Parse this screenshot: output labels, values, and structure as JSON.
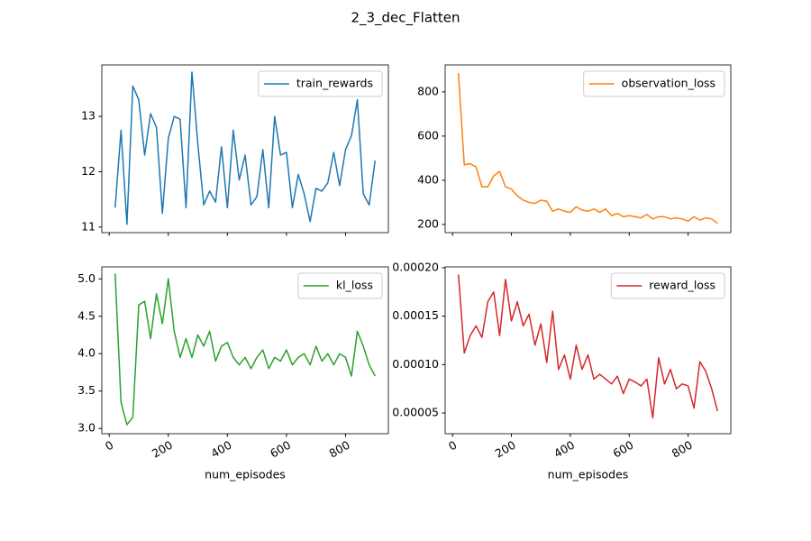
{
  "title": "2_3_dec_Flatten",
  "chart_data": [
    {
      "type": "line",
      "x": [
        20,
        40,
        60,
        80,
        100,
        120,
        140,
        160,
        180,
        200,
        220,
        240,
        260,
        280,
        300,
        320,
        340,
        360,
        380,
        400,
        420,
        440,
        460,
        480,
        500,
        520,
        540,
        560,
        580,
        600,
        620,
        640,
        660,
        680,
        700,
        720,
        740,
        760,
        780,
        800,
        820,
        840,
        860,
        880,
        900
      ],
      "series": [
        {
          "name": "train_rewards",
          "color": "#1f77b4",
          "values": [
            11.35,
            12.75,
            11.05,
            13.55,
            13.3,
            12.3,
            13.05,
            12.8,
            11.25,
            12.6,
            13.0,
            12.95,
            11.35,
            13.8,
            12.5,
            11.4,
            11.65,
            11.45,
            12.45,
            11.35,
            12.75,
            11.85,
            12.3,
            11.4,
            11.55,
            12.4,
            11.35,
            13.0,
            12.3,
            12.35,
            11.35,
            11.95,
            11.6,
            11.1,
            11.7,
            11.65,
            11.8,
            12.35,
            11.75,
            12.4,
            12.65,
            13.3,
            11.6,
            11.4,
            12.2
          ]
        }
      ],
      "xlim": [
        -25,
        945
      ],
      "xticks": [
        0,
        200,
        400,
        600,
        800
      ],
      "ylim": [
        10.9,
        13.93
      ],
      "yticks": [
        11,
        12,
        13
      ],
      "legend": "upper right"
    },
    {
      "type": "line",
      "x": [
        20,
        40,
        60,
        80,
        100,
        120,
        140,
        160,
        180,
        200,
        220,
        240,
        260,
        280,
        300,
        320,
        340,
        360,
        380,
        400,
        420,
        440,
        460,
        480,
        500,
        520,
        540,
        560,
        580,
        600,
        620,
        640,
        660,
        680,
        700,
        720,
        740,
        760,
        780,
        800,
        820,
        840,
        860,
        880,
        900
      ],
      "series": [
        {
          "name": "observation_loss",
          "color": "#ff7f0e",
          "values": [
            885,
            470,
            475,
            460,
            370,
            370,
            420,
            440,
            370,
            360,
            330,
            310,
            300,
            295,
            310,
            305,
            260,
            270,
            260,
            255,
            280,
            265,
            260,
            270,
            255,
            270,
            240,
            250,
            235,
            240,
            235,
            230,
            245,
            225,
            235,
            235,
            225,
            230,
            225,
            215,
            235,
            220,
            230,
            225,
            205
          ]
        }
      ],
      "xlim": [
        -25,
        945
      ],
      "xticks": [
        0,
        200,
        400,
        600,
        800
      ],
      "ylim": [
        163,
        922
      ],
      "yticks": [
        200,
        400,
        600,
        800
      ],
      "legend": "upper right"
    },
    {
      "type": "line",
      "x": [
        20,
        40,
        60,
        80,
        100,
        120,
        140,
        160,
        180,
        200,
        220,
        240,
        260,
        280,
        300,
        320,
        340,
        360,
        380,
        400,
        420,
        440,
        460,
        480,
        500,
        520,
        540,
        560,
        580,
        600,
        620,
        640,
        660,
        680,
        700,
        720,
        740,
        760,
        780,
        800,
        820,
        840,
        860,
        880,
        900
      ],
      "series": [
        {
          "name": "kl_loss",
          "color": "#2ca02c",
          "values": [
            5.07,
            3.35,
            3.05,
            3.15,
            4.65,
            4.7,
            4.2,
            4.8,
            4.4,
            5.0,
            4.3,
            3.95,
            4.2,
            3.95,
            4.25,
            4.1,
            4.3,
            3.9,
            4.1,
            4.15,
            3.95,
            3.85,
            3.95,
            3.8,
            3.95,
            4.05,
            3.8,
            3.95,
            3.9,
            4.05,
            3.85,
            3.95,
            4.0,
            3.85,
            4.1,
            3.9,
            4.0,
            3.85,
            4.0,
            3.95,
            3.7,
            4.3,
            4.1,
            3.85,
            3.7
          ]
        }
      ],
      "xlim": [
        -25,
        945
      ],
      "xticks": [
        0,
        200,
        400,
        600,
        800
      ],
      "xlabel": "num_episodes",
      "ylim": [
        2.93,
        5.16
      ],
      "yticks": [
        {
          "value": 3,
          "label": "3.0"
        },
        3.5,
        {
          "value": 4,
          "label": "4.0"
        },
        4.5,
        {
          "value": 5,
          "label": "5.0"
        }
      ],
      "legend": "upper right"
    },
    {
      "type": "line",
      "x": [
        20,
        40,
        60,
        80,
        100,
        120,
        140,
        160,
        180,
        200,
        220,
        240,
        260,
        280,
        300,
        320,
        340,
        360,
        380,
        400,
        420,
        440,
        460,
        480,
        500,
        520,
        540,
        560,
        580,
        600,
        620,
        640,
        660,
        680,
        700,
        720,
        740,
        760,
        780,
        800,
        820,
        840,
        860,
        880,
        900
      ],
      "series": [
        {
          "name": "reward_loss",
          "color": "#d62728",
          "values": [
            0.000193,
            0.000112,
            0.00013,
            0.00014,
            0.000128,
            0.000165,
            0.000175,
            0.00013,
            0.000188,
            0.000145,
            0.000165,
            0.00014,
            0.000152,
            0.00012,
            0.000142,
            0.000102,
            0.000155,
            9.5e-05,
            0.00011,
            8.5e-05,
            0.00012,
            9.5e-05,
            0.00011,
            8.5e-05,
            9e-05,
            8.5e-05,
            8e-05,
            8.8e-05,
            7e-05,
            8.5e-05,
            8.2e-05,
            7.8e-05,
            8.5e-05,
            4.5e-05,
            0.000107,
            8e-05,
            9.5e-05,
            7.5e-05,
            8e-05,
            7.8e-05,
            5.5e-05,
            0.000103,
            9.3e-05,
            7.5e-05,
            5.2e-05
          ]
        }
      ],
      "xlim": [
        -25,
        945
      ],
      "xticks": [
        0,
        200,
        400,
        600,
        800
      ],
      "xlabel": "num_episodes",
      "ylim": [
        2.86e-05,
        0.0002009
      ],
      "yticks": [
        5e-05,
        {
          "value": 0.0001,
          "label": "0.00010"
        },
        0.00015,
        {
          "value": 0.0002,
          "label": "0.00020"
        }
      ],
      "legend": "upper right"
    }
  ]
}
